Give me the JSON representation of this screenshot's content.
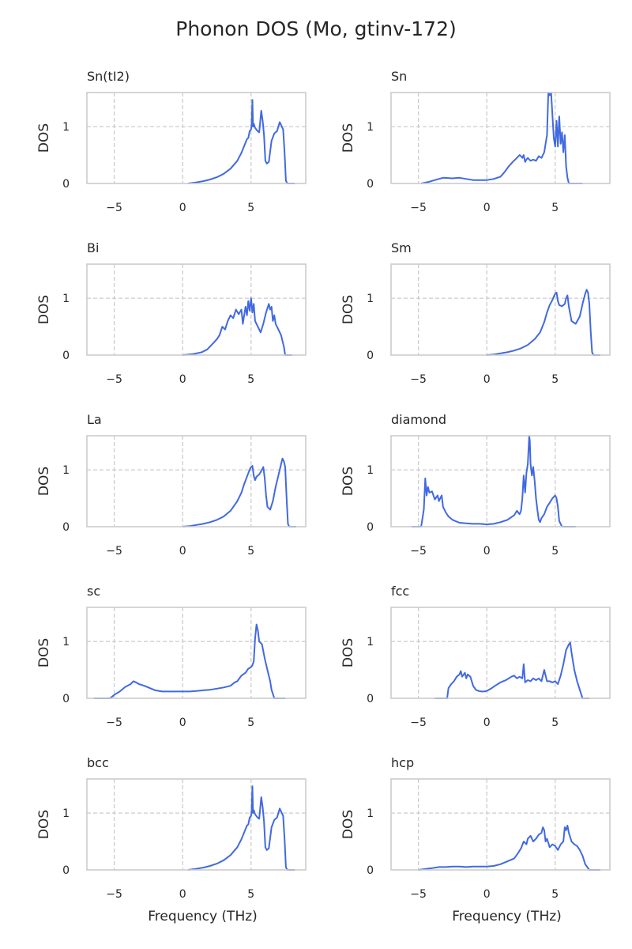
{
  "figure": {
    "title": "Phonon DOS (Mo, gtinv-172)",
    "xlabel": "Frequency (THz)",
    "ylabel": "DOS"
  },
  "colors": {
    "line": "#4169e1",
    "grid": "#cccccc",
    "frame": "#cccccc",
    "text": "#262626"
  },
  "chart_data": [
    {
      "type": "line",
      "title": "Sn(tI2)",
      "xlabel": "",
      "ylabel": "DOS",
      "xlim": [
        -7,
        9
      ],
      "ylim": [
        0,
        1.6
      ],
      "xticks": [
        -5,
        0,
        5
      ],
      "yticks": [
        0,
        1
      ],
      "grid": true,
      "x": [
        0.4,
        1.0,
        1.5,
        2.0,
        2.5,
        3.0,
        3.5,
        4.0,
        4.3,
        4.5,
        4.7,
        4.8,
        4.9,
        5.0,
        5.05,
        5.1,
        5.15,
        5.2,
        5.3,
        5.45,
        5.6,
        5.75,
        5.85,
        5.95,
        6.05,
        6.15,
        6.3,
        6.5,
        6.7,
        6.9,
        7.1,
        7.25,
        7.35,
        7.45,
        7.55,
        7.65,
        7.75,
        7.85,
        8.0,
        8.2
      ],
      "y": [
        0.0,
        0.02,
        0.04,
        0.07,
        0.11,
        0.17,
        0.26,
        0.4,
        0.54,
        0.66,
        0.78,
        0.8,
        0.92,
        0.95,
        1.05,
        1.47,
        1.0,
        1.05,
        0.98,
        0.93,
        0.9,
        1.28,
        1.1,
        0.85,
        0.4,
        0.35,
        0.38,
        0.75,
        0.88,
        0.92,
        1.08,
        1.0,
        0.95,
        0.55,
        0.05,
        0.0,
        0.0,
        0.0,
        0.0,
        0.0
      ]
    },
    {
      "type": "line",
      "title": "Sn",
      "xlabel": "",
      "ylabel": "DOS",
      "xlim": [
        -7,
        9
      ],
      "ylim": [
        0,
        1.6
      ],
      "xticks": [
        -5,
        0,
        5
      ],
      "yticks": [
        0,
        1
      ],
      "grid": true,
      "x": [
        -4.8,
        -4.2,
        -3.8,
        -3.2,
        -2.5,
        -2.0,
        -1.5,
        -1.0,
        -0.5,
        0.0,
        0.5,
        1.0,
        1.3,
        1.6,
        1.9,
        2.2,
        2.4,
        2.5,
        2.6,
        2.7,
        2.8,
        2.9,
        3.0,
        3.2,
        3.4,
        3.6,
        3.8,
        4.0,
        4.2,
        4.4,
        4.5,
        4.6,
        4.7,
        4.8,
        4.9,
        5.0,
        5.1,
        5.2,
        5.3,
        5.4,
        5.5,
        5.6,
        5.7,
        5.8,
        5.9,
        6.0,
        6.1,
        6.3,
        6.5,
        7.0
      ],
      "y": [
        0.0,
        0.03,
        0.06,
        0.1,
        0.09,
        0.1,
        0.08,
        0.06,
        0.06,
        0.06,
        0.08,
        0.12,
        0.2,
        0.3,
        0.38,
        0.45,
        0.5,
        0.48,
        0.45,
        0.5,
        0.38,
        0.42,
        0.45,
        0.4,
        0.42,
        0.4,
        0.48,
        0.45,
        0.55,
        0.85,
        1.6,
        1.55,
        1.6,
        1.2,
        0.8,
        0.65,
        1.1,
        0.65,
        1.18,
        0.7,
        0.9,
        0.55,
        0.85,
        0.3,
        0.1,
        0.0,
        0.0,
        0.0,
        0.0,
        0.0
      ]
    },
    {
      "type": "line",
      "title": "Bi",
      "xlabel": "",
      "ylabel": "DOS",
      "xlim": [
        -7,
        9
      ],
      "ylim": [
        0,
        1.6
      ],
      "xticks": [
        -5,
        0,
        5
      ],
      "yticks": [
        0,
        1
      ],
      "grid": true,
      "x": [
        0.0,
        0.8,
        1.4,
        1.8,
        2.2,
        2.5,
        2.7,
        2.9,
        3.1,
        3.3,
        3.5,
        3.7,
        3.9,
        4.1,
        4.3,
        4.4,
        4.6,
        4.7,
        4.8,
        4.9,
        5.0,
        5.1,
        5.2,
        5.3,
        5.5,
        5.7,
        5.9,
        6.1,
        6.3,
        6.4,
        6.5,
        6.6,
        6.7,
        6.8,
        7.0,
        7.2,
        7.4,
        7.5,
        7.7,
        8.0
      ],
      "y": [
        0.0,
        0.02,
        0.05,
        0.1,
        0.2,
        0.28,
        0.35,
        0.5,
        0.45,
        0.6,
        0.7,
        0.65,
        0.8,
        0.72,
        0.8,
        0.55,
        0.85,
        0.7,
        0.95,
        0.78,
        1.0,
        0.75,
        0.9,
        0.6,
        0.5,
        0.4,
        0.55,
        0.75,
        0.9,
        0.8,
        0.85,
        0.6,
        0.7,
        0.55,
        0.45,
        0.35,
        0.15,
        0.0,
        0.0,
        0.0
      ]
    },
    {
      "type": "line",
      "title": "Sm",
      "xlabel": "",
      "ylabel": "DOS",
      "xlim": [
        -7,
        9
      ],
      "ylim": [
        0,
        1.6
      ],
      "xticks": [
        -5,
        0,
        5
      ],
      "yticks": [
        0,
        1
      ],
      "grid": true,
      "x": [
        0.0,
        0.5,
        1.0,
        1.5,
        2.0,
        2.5,
        3.0,
        3.5,
        3.9,
        4.2,
        4.4,
        4.6,
        4.8,
        4.9,
        5.0,
        5.1,
        5.2,
        5.3,
        5.5,
        5.7,
        5.8,
        5.9,
        6.0,
        6.2,
        6.5,
        6.8,
        7.0,
        7.2,
        7.3,
        7.4,
        7.5,
        7.6,
        7.7,
        7.8,
        8.0,
        8.3
      ],
      "y": [
        0.0,
        0.01,
        0.03,
        0.05,
        0.08,
        0.12,
        0.18,
        0.28,
        0.4,
        0.58,
        0.75,
        0.88,
        0.97,
        1.03,
        1.08,
        1.1,
        0.95,
        0.88,
        0.86,
        0.9,
        1.0,
        1.05,
        0.85,
        0.6,
        0.55,
        0.68,
        0.9,
        1.08,
        1.15,
        1.1,
        0.9,
        0.4,
        0.05,
        0.0,
        0.0,
        0.0
      ]
    },
    {
      "type": "line",
      "title": "La",
      "xlabel": "",
      "ylabel": "DOS",
      "xlim": [
        -7,
        9
      ],
      "ylim": [
        0,
        1.6
      ],
      "xticks": [
        -5,
        0,
        5
      ],
      "yticks": [
        0,
        1
      ],
      "grid": true,
      "x": [
        0.0,
        0.5,
        1.0,
        1.5,
        2.0,
        2.5,
        3.0,
        3.5,
        4.0,
        4.3,
        4.5,
        4.7,
        4.9,
        5.0,
        5.1,
        5.2,
        5.3,
        5.4,
        5.6,
        5.8,
        5.9,
        6.0,
        6.1,
        6.2,
        6.4,
        6.6,
        6.8,
        7.0,
        7.2,
        7.3,
        7.4,
        7.5,
        7.6,
        7.7,
        7.8,
        8.0,
        8.3
      ],
      "y": [
        0.0,
        0.01,
        0.03,
        0.05,
        0.08,
        0.12,
        0.18,
        0.28,
        0.45,
        0.6,
        0.75,
        0.88,
        1.0,
        1.05,
        1.07,
        0.9,
        0.82,
        0.88,
        0.92,
        1.0,
        1.05,
        0.85,
        0.55,
        0.35,
        0.3,
        0.45,
        0.7,
        0.9,
        1.1,
        1.2,
        1.15,
        1.05,
        0.5,
        0.05,
        0.0,
        0.0,
        0.0
      ]
    },
    {
      "type": "line",
      "title": "diamond",
      "xlabel": "",
      "ylabel": "DOS",
      "xlim": [
        -7,
        9
      ],
      "ylim": [
        0,
        1.6
      ],
      "xticks": [
        -5,
        0,
        5
      ],
      "yticks": [
        0,
        1
      ],
      "grid": true,
      "x": [
        -5.5,
        -4.8,
        -4.6,
        -4.5,
        -4.4,
        -4.3,
        -4.2,
        -4.0,
        -3.8,
        -3.6,
        -3.5,
        -3.4,
        -3.3,
        -3.2,
        -3.0,
        -2.8,
        -2.5,
        -2.0,
        -1.5,
        -1.0,
        -0.5,
        0.0,
        0.5,
        1.0,
        1.5,
        2.0,
        2.2,
        2.4,
        2.5,
        2.6,
        2.7,
        2.8,
        2.9,
        3.0,
        3.1,
        3.15,
        3.2,
        3.3,
        3.4,
        3.5,
        3.6,
        3.7,
        3.8,
        3.9,
        4.0,
        4.2,
        4.4,
        4.6,
        4.8,
        5.0,
        5.1,
        5.2,
        5.3,
        5.5,
        6.0,
        6.5
      ],
      "y": [
        0.0,
        0.0,
        0.3,
        0.85,
        0.55,
        0.7,
        0.6,
        0.62,
        0.48,
        0.55,
        0.45,
        0.5,
        0.55,
        0.35,
        0.25,
        0.18,
        0.12,
        0.07,
        0.06,
        0.05,
        0.05,
        0.04,
        0.05,
        0.08,
        0.12,
        0.2,
        0.28,
        0.22,
        0.28,
        0.5,
        0.9,
        0.6,
        0.95,
        1.1,
        1.6,
        1.5,
        1.1,
        0.9,
        1.05,
        0.8,
        0.5,
        0.3,
        0.12,
        0.08,
        0.15,
        0.22,
        0.35,
        0.42,
        0.5,
        0.55,
        0.5,
        0.35,
        0.1,
        0.0,
        0.0,
        0.0
      ]
    },
    {
      "type": "line",
      "title": "sc",
      "xlabel": "",
      "ylabel": "DOS",
      "xlim": [
        -7,
        9
      ],
      "ylim": [
        0,
        1.6
      ],
      "xticks": [
        -5,
        0,
        5
      ],
      "yticks": [
        0,
        1
      ],
      "grid": true,
      "x": [
        -6.5,
        -5.3,
        -5.0,
        -4.6,
        -4.2,
        -3.8,
        -3.6,
        -3.4,
        -3.2,
        -2.8,
        -2.4,
        -2.0,
        -1.5,
        -1.0,
        -0.5,
        0.0,
        0.5,
        1.0,
        1.5,
        2.0,
        2.5,
        3.0,
        3.5,
        3.8,
        4.0,
        4.3,
        4.6,
        4.8,
        5.0,
        5.1,
        5.2,
        5.3,
        5.4,
        5.5,
        5.6,
        5.8,
        6.0,
        6.2,
        6.4,
        6.5,
        6.7,
        7.0,
        7.5
      ],
      "y": [
        0.0,
        0.0,
        0.06,
        0.12,
        0.2,
        0.25,
        0.3,
        0.28,
        0.25,
        0.22,
        0.18,
        0.14,
        0.12,
        0.12,
        0.12,
        0.12,
        0.12,
        0.13,
        0.14,
        0.15,
        0.17,
        0.19,
        0.22,
        0.28,
        0.3,
        0.4,
        0.45,
        0.52,
        0.55,
        0.58,
        0.65,
        1.05,
        1.3,
        1.2,
        1.0,
        0.95,
        0.7,
        0.5,
        0.3,
        0.15,
        0.0,
        0.0,
        0.0
      ]
    },
    {
      "type": "line",
      "title": "fcc",
      "xlabel": "",
      "ylabel": "DOS",
      "xlim": [
        -7,
        9
      ],
      "ylim": [
        0,
        1.6
      ],
      "xticks": [
        -5,
        0,
        5
      ],
      "yticks": [
        0,
        1
      ],
      "grid": true,
      "x": [
        -3.8,
        -2.9,
        -2.8,
        -2.6,
        -2.4,
        -2.2,
        -2.0,
        -1.9,
        -1.8,
        -1.6,
        -1.5,
        -1.4,
        -1.3,
        -1.2,
        -1.0,
        -0.8,
        -0.6,
        -0.4,
        -0.2,
        0.0,
        0.3,
        0.6,
        1.0,
        1.4,
        1.8,
        2.0,
        2.2,
        2.4,
        2.6,
        2.7,
        2.8,
        3.0,
        3.2,
        3.4,
        3.6,
        3.8,
        4.0,
        4.2,
        4.4,
        4.6,
        4.8,
        5.0,
        5.2,
        5.4,
        5.6,
        5.8,
        6.0,
        6.1,
        6.2,
        6.4,
        6.6,
        6.8,
        7.0,
        7.2,
        7.5
      ],
      "y": [
        0.0,
        0.0,
        0.18,
        0.25,
        0.3,
        0.38,
        0.42,
        0.48,
        0.38,
        0.45,
        0.35,
        0.42,
        0.4,
        0.38,
        0.22,
        0.15,
        0.13,
        0.12,
        0.12,
        0.13,
        0.17,
        0.22,
        0.28,
        0.32,
        0.38,
        0.4,
        0.35,
        0.38,
        0.35,
        0.6,
        0.28,
        0.32,
        0.3,
        0.35,
        0.32,
        0.35,
        0.3,
        0.5,
        0.3,
        0.3,
        0.28,
        0.3,
        0.25,
        0.4,
        0.6,
        0.85,
        0.95,
        0.98,
        0.8,
        0.5,
        0.3,
        0.15,
        0.0,
        0.0,
        0.0
      ]
    },
    {
      "type": "line",
      "title": "bcc",
      "xlabel": "",
      "ylabel": "DOS",
      "xlim": [
        -7,
        9
      ],
      "ylim": [
        0,
        1.6
      ],
      "xticks": [
        -5,
        0,
        5
      ],
      "yticks": [
        0,
        1
      ],
      "grid": true,
      "x": [
        0.4,
        1.0,
        1.5,
        2.0,
        2.5,
        3.0,
        3.5,
        4.0,
        4.3,
        4.5,
        4.7,
        4.8,
        4.9,
        5.0,
        5.05,
        5.1,
        5.15,
        5.2,
        5.3,
        5.45,
        5.6,
        5.75,
        5.85,
        5.95,
        6.05,
        6.15,
        6.3,
        6.5,
        6.7,
        6.9,
        7.1,
        7.25,
        7.35,
        7.45,
        7.55,
        7.65,
        7.75,
        7.85,
        8.0,
        8.2
      ],
      "y": [
        0.0,
        0.02,
        0.04,
        0.07,
        0.11,
        0.17,
        0.26,
        0.4,
        0.54,
        0.66,
        0.78,
        0.8,
        0.92,
        0.95,
        1.05,
        1.47,
        1.0,
        1.05,
        0.98,
        0.93,
        0.9,
        1.28,
        1.1,
        0.85,
        0.4,
        0.35,
        0.38,
        0.75,
        0.88,
        0.92,
        1.08,
        1.0,
        0.95,
        0.55,
        0.05,
        0.0,
        0.0,
        0.0,
        0.0,
        0.0
      ]
    },
    {
      "type": "line",
      "title": "hcp",
      "xlabel": "",
      "ylabel": "DOS",
      "xlim": [
        -7,
        9
      ],
      "ylim": [
        0,
        1.6
      ],
      "xticks": [
        -5,
        0,
        5
      ],
      "yticks": [
        0,
        1
      ],
      "grid": true,
      "x": [
        -5.0,
        -4.0,
        -3.5,
        -3.0,
        -2.5,
        -2.0,
        -1.5,
        -1.0,
        -0.5,
        0.0,
        0.5,
        1.0,
        1.5,
        2.0,
        2.3,
        2.5,
        2.7,
        2.9,
        3.0,
        3.2,
        3.4,
        3.6,
        3.8,
        4.0,
        4.1,
        4.2,
        4.3,
        4.4,
        4.6,
        4.8,
        5.0,
        5.2,
        5.4,
        5.6,
        5.7,
        5.8,
        5.9,
        6.0,
        6.2,
        6.4,
        6.6,
        6.8,
        7.0,
        7.2,
        7.5,
        8.0,
        8.3
      ],
      "y": [
        0.0,
        0.03,
        0.05,
        0.05,
        0.06,
        0.06,
        0.05,
        0.06,
        0.06,
        0.06,
        0.07,
        0.1,
        0.15,
        0.2,
        0.3,
        0.38,
        0.5,
        0.45,
        0.55,
        0.6,
        0.5,
        0.55,
        0.62,
        0.65,
        0.75,
        0.7,
        0.5,
        0.55,
        0.4,
        0.45,
        0.42,
        0.35,
        0.45,
        0.5,
        0.75,
        0.7,
        0.78,
        0.65,
        0.5,
        0.45,
        0.42,
        0.35,
        0.25,
        0.1,
        0.0,
        0.0,
        0.0
      ]
    }
  ]
}
